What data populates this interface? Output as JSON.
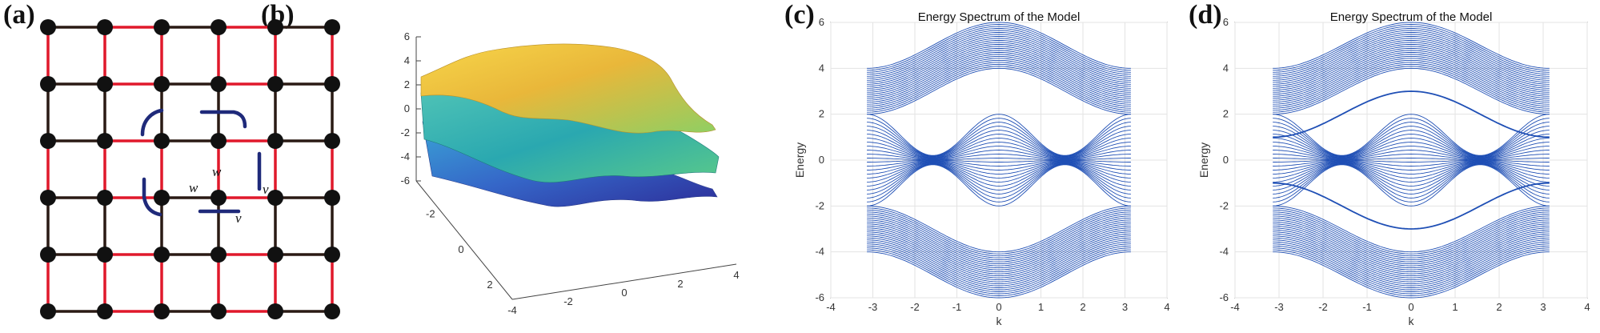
{
  "panel_labels": {
    "a": "(a)",
    "b": "(b)",
    "c": "(c)",
    "d": "(d)"
  },
  "lattice": {
    "grid_size": 6,
    "symbols": {
      "w1": "w",
      "w2": "w",
      "v1": "v",
      "v2": "v"
    },
    "colors": {
      "node": "#111111",
      "bond": "#2a1a14",
      "highlight_bond": "#e0192b",
      "arc": "#1f2a7a"
    }
  },
  "surface": {
    "x_ticks": [
      "-4",
      "-2",
      "0",
      "2",
      "4"
    ],
    "y_ticks": [
      "-2",
      "0",
      "2"
    ],
    "z_ticks": [
      "6",
      "4",
      "2",
      "0",
      "-2",
      "-4",
      "-6"
    ],
    "colors": {
      "top": "#f2c12e",
      "middle": "#33b7a9",
      "bottom": "#3b6fd0"
    }
  },
  "chart_data": [
    {
      "type": "line",
      "title": "Energy Spectrum of the Model",
      "xlabel": "k",
      "ylabel": "Energy",
      "xlim": [
        -4,
        4
      ],
      "ylim": [
        -6,
        6
      ],
      "x_ticks": [
        "-4",
        "-3",
        "-2",
        "-1",
        "0",
        "1",
        "2",
        "3",
        "4"
      ],
      "y_ticks": [
        "6",
        "4",
        "2",
        "0",
        "-2",
        "-4",
        "-6"
      ],
      "k_range": [
        -3.1416,
        3.1416
      ],
      "grid": true,
      "line_color": "#1f4fb5",
      "bands": [
        {
          "name": "upper band",
          "lower_edge_at_k0": 4.0,
          "upper_edge_at_k0": 6.0,
          "edge_at_k_pi": 2.0,
          "top_at_k_pi": 4.0
        },
        {
          "name": "middle band",
          "range_at_k0": [
            -2.0,
            2.0
          ],
          "range_at_k_pi": [
            -2.0,
            2.0
          ]
        },
        {
          "name": "lower band",
          "lower_edge_at_k0": -6.0,
          "upper_edge_at_k0": -4.0,
          "edge_at_k_pi": -2.0,
          "bottom_at_k_pi": -4.0
        }
      ],
      "edge_states": []
    },
    {
      "type": "line",
      "title": "Energy Spectrum of the Model",
      "xlabel": "k",
      "ylabel": "Energy",
      "xlim": [
        -4,
        4
      ],
      "ylim": [
        -6,
        6
      ],
      "x_ticks": [
        "-4",
        "-3",
        "-2",
        "-1",
        "0",
        "1",
        "2",
        "3",
        "4"
      ],
      "y_ticks": [
        "6",
        "4",
        "2",
        "0",
        "-2",
        "-4",
        "-6"
      ],
      "k_range": [
        -3.1416,
        3.1416
      ],
      "grid": true,
      "line_color": "#1f4fb5",
      "bands": [
        {
          "name": "upper band",
          "lower_edge_at_k0": 4.0,
          "upper_edge_at_k0": 6.0,
          "edge_at_k_pi": 2.0,
          "top_at_k_pi": 4.0
        },
        {
          "name": "middle band",
          "range_at_k0": [
            -2.0,
            2.0
          ],
          "range_at_k_pi": [
            -2.0,
            2.0
          ]
        },
        {
          "name": "lower band",
          "lower_edge_at_k0": -6.0,
          "upper_edge_at_k0": -4.0,
          "edge_at_k_pi": -2.0,
          "bottom_at_k_pi": -4.0
        }
      ],
      "edge_states": [
        {
          "name": "upper in-gap state",
          "value_at_k0": 3.0,
          "value_at_k_pi": 1.0
        },
        {
          "name": "lower in-gap state",
          "value_at_k0": -3.0,
          "value_at_k_pi": -1.0
        }
      ]
    }
  ]
}
